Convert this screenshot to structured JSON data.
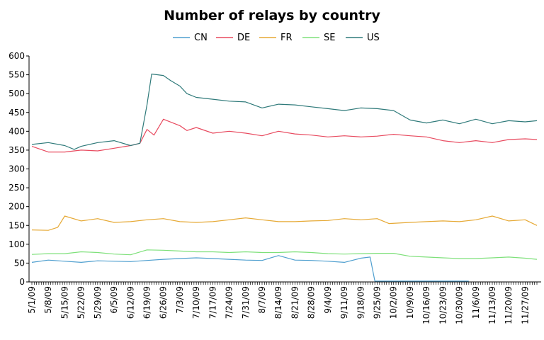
{
  "chart_data": {
    "type": "line",
    "title": "Number of relays by country",
    "xlabel": "",
    "ylabel": "",
    "ylim": [
      0,
      600
    ],
    "yticks": [
      0,
      50,
      100,
      150,
      200,
      250,
      300,
      350,
      400,
      450,
      500,
      550,
      600
    ],
    "grid": false,
    "legend": "top-center",
    "x_start": "2009-05-01",
    "x_end": "2009-12-02",
    "xticks": [
      "5/1/09",
      "5/8/09",
      "5/15/09",
      "5/22/09",
      "5/29/09",
      "6/5/09",
      "6/12/09",
      "6/19/09",
      "6/26/09",
      "7/3/09",
      "7/10/09",
      "7/17/09",
      "7/24/09",
      "7/31/09",
      "8/7/09",
      "8/14/09",
      "8/21/09",
      "8/28/09",
      "9/4/09",
      "9/11/09",
      "9/18/09",
      "9/25/09",
      "10/2/09",
      "10/9/09",
      "10/16/09",
      "10/23/09",
      "10/30/09",
      "11/6/09",
      "11/13/09",
      "11/20/09",
      "11/27/09"
    ],
    "series": [
      {
        "name": "CN",
        "color": "#4f9fcf",
        "values": [
          [
            "2009-05-01",
            52
          ],
          [
            "2009-05-08",
            58
          ],
          [
            "2009-05-15",
            55
          ],
          [
            "2009-05-22",
            52
          ],
          [
            "2009-05-29",
            56
          ],
          [
            "2009-06-05",
            55
          ],
          [
            "2009-06-12",
            54
          ],
          [
            "2009-06-19",
            57
          ],
          [
            "2009-06-26",
            60
          ],
          [
            "2009-07-03",
            62
          ],
          [
            "2009-07-10",
            64
          ],
          [
            "2009-07-17",
            62
          ],
          [
            "2009-07-24",
            60
          ],
          [
            "2009-07-31",
            58
          ],
          [
            "2009-08-07",
            57
          ],
          [
            "2009-08-14",
            70
          ],
          [
            "2009-08-21",
            58
          ],
          [
            "2009-08-28",
            57
          ],
          [
            "2009-09-04",
            55
          ],
          [
            "2009-09-11",
            52
          ],
          [
            "2009-09-18",
            63
          ],
          [
            "2009-09-22",
            66
          ],
          [
            "2009-09-24",
            2
          ],
          [
            "2009-10-02",
            2
          ],
          [
            "2009-10-16",
            2
          ],
          [
            "2009-10-23",
            2
          ],
          [
            "2009-10-30",
            2
          ],
          [
            "2009-11-03",
            2
          ]
        ]
      },
      {
        "name": "DE",
        "color": "#e84a5f",
        "values": [
          [
            "2009-05-01",
            360
          ],
          [
            "2009-05-08",
            345
          ],
          [
            "2009-05-15",
            345
          ],
          [
            "2009-05-22",
            350
          ],
          [
            "2009-05-29",
            348
          ],
          [
            "2009-06-05",
            355
          ],
          [
            "2009-06-12",
            362
          ],
          [
            "2009-06-16",
            368
          ],
          [
            "2009-06-19",
            405
          ],
          [
            "2009-06-22",
            390
          ],
          [
            "2009-06-26",
            432
          ],
          [
            "2009-07-03",
            415
          ],
          [
            "2009-07-06",
            402
          ],
          [
            "2009-07-10",
            410
          ],
          [
            "2009-07-17",
            395
          ],
          [
            "2009-07-24",
            400
          ],
          [
            "2009-07-31",
            395
          ],
          [
            "2009-08-07",
            388
          ],
          [
            "2009-08-14",
            400
          ],
          [
            "2009-08-21",
            393
          ],
          [
            "2009-08-28",
            390
          ],
          [
            "2009-09-04",
            385
          ],
          [
            "2009-09-11",
            388
          ],
          [
            "2009-09-18",
            385
          ],
          [
            "2009-09-25",
            387
          ],
          [
            "2009-10-02",
            392
          ],
          [
            "2009-10-09",
            388
          ],
          [
            "2009-10-16",
            385
          ],
          [
            "2009-10-23",
            375
          ],
          [
            "2009-10-30",
            370
          ],
          [
            "2009-11-06",
            375
          ],
          [
            "2009-11-13",
            370
          ],
          [
            "2009-11-20",
            378
          ],
          [
            "2009-11-27",
            380
          ],
          [
            "2009-12-02",
            378
          ]
        ]
      },
      {
        "name": "FR",
        "color": "#e6a935",
        "values": [
          [
            "2009-05-01",
            138
          ],
          [
            "2009-05-08",
            137
          ],
          [
            "2009-05-12",
            145
          ],
          [
            "2009-05-15",
            175
          ],
          [
            "2009-05-22",
            162
          ],
          [
            "2009-05-29",
            168
          ],
          [
            "2009-06-05",
            158
          ],
          [
            "2009-06-12",
            160
          ],
          [
            "2009-06-19",
            165
          ],
          [
            "2009-06-26",
            168
          ],
          [
            "2009-07-03",
            160
          ],
          [
            "2009-07-10",
            158
          ],
          [
            "2009-07-17",
            160
          ],
          [
            "2009-07-24",
            165
          ],
          [
            "2009-07-31",
            170
          ],
          [
            "2009-08-07",
            165
          ],
          [
            "2009-08-14",
            160
          ],
          [
            "2009-08-21",
            160
          ],
          [
            "2009-08-28",
            162
          ],
          [
            "2009-09-04",
            163
          ],
          [
            "2009-09-11",
            168
          ],
          [
            "2009-09-18",
            165
          ],
          [
            "2009-09-25",
            168
          ],
          [
            "2009-09-30",
            155
          ],
          [
            "2009-10-09",
            158
          ],
          [
            "2009-10-16",
            160
          ],
          [
            "2009-10-23",
            162
          ],
          [
            "2009-10-30",
            160
          ],
          [
            "2009-11-06",
            165
          ],
          [
            "2009-11-13",
            175
          ],
          [
            "2009-11-20",
            162
          ],
          [
            "2009-11-27",
            165
          ],
          [
            "2009-12-02",
            150
          ]
        ]
      },
      {
        "name": "SE",
        "color": "#7ee07a",
        "values": [
          [
            "2009-05-01",
            73
          ],
          [
            "2009-05-08",
            75
          ],
          [
            "2009-05-15",
            75
          ],
          [
            "2009-05-22",
            80
          ],
          [
            "2009-05-29",
            78
          ],
          [
            "2009-06-05",
            74
          ],
          [
            "2009-06-12",
            72
          ],
          [
            "2009-06-19",
            85
          ],
          [
            "2009-06-26",
            84
          ],
          [
            "2009-07-03",
            82
          ],
          [
            "2009-07-10",
            80
          ],
          [
            "2009-07-17",
            80
          ],
          [
            "2009-07-24",
            78
          ],
          [
            "2009-07-31",
            80
          ],
          [
            "2009-08-07",
            78
          ],
          [
            "2009-08-14",
            78
          ],
          [
            "2009-08-21",
            80
          ],
          [
            "2009-08-28",
            78
          ],
          [
            "2009-09-04",
            75
          ],
          [
            "2009-09-11",
            74
          ],
          [
            "2009-09-18",
            75
          ],
          [
            "2009-09-25",
            76
          ],
          [
            "2009-10-02",
            76
          ],
          [
            "2009-10-09",
            68
          ],
          [
            "2009-10-16",
            66
          ],
          [
            "2009-10-23",
            64
          ],
          [
            "2009-10-30",
            62
          ],
          [
            "2009-11-06",
            62
          ],
          [
            "2009-11-13",
            64
          ],
          [
            "2009-11-20",
            66
          ],
          [
            "2009-11-27",
            63
          ],
          [
            "2009-12-02",
            60
          ]
        ]
      },
      {
        "name": "US",
        "color": "#2f7a7a",
        "values": [
          [
            "2009-05-01",
            365
          ],
          [
            "2009-05-08",
            370
          ],
          [
            "2009-05-15",
            362
          ],
          [
            "2009-05-19",
            352
          ],
          [
            "2009-05-22",
            360
          ],
          [
            "2009-05-29",
            370
          ],
          [
            "2009-06-05",
            375
          ],
          [
            "2009-06-12",
            362
          ],
          [
            "2009-06-16",
            368
          ],
          [
            "2009-06-19",
            470
          ],
          [
            "2009-06-21",
            552
          ],
          [
            "2009-06-26",
            548
          ],
          [
            "2009-06-29",
            535
          ],
          [
            "2009-07-03",
            520
          ],
          [
            "2009-07-06",
            500
          ],
          [
            "2009-07-10",
            490
          ],
          [
            "2009-07-17",
            485
          ],
          [
            "2009-07-24",
            480
          ],
          [
            "2009-07-31",
            478
          ],
          [
            "2009-08-07",
            462
          ],
          [
            "2009-08-14",
            472
          ],
          [
            "2009-08-21",
            470
          ],
          [
            "2009-08-28",
            465
          ],
          [
            "2009-09-04",
            460
          ],
          [
            "2009-09-11",
            455
          ],
          [
            "2009-09-18",
            462
          ],
          [
            "2009-09-25",
            460
          ],
          [
            "2009-10-02",
            455
          ],
          [
            "2009-10-09",
            430
          ],
          [
            "2009-10-16",
            422
          ],
          [
            "2009-10-23",
            430
          ],
          [
            "2009-10-30",
            420
          ],
          [
            "2009-11-06",
            432
          ],
          [
            "2009-11-13",
            420
          ],
          [
            "2009-11-20",
            428
          ],
          [
            "2009-11-27",
            425
          ],
          [
            "2009-12-02",
            428
          ]
        ]
      }
    ]
  }
}
